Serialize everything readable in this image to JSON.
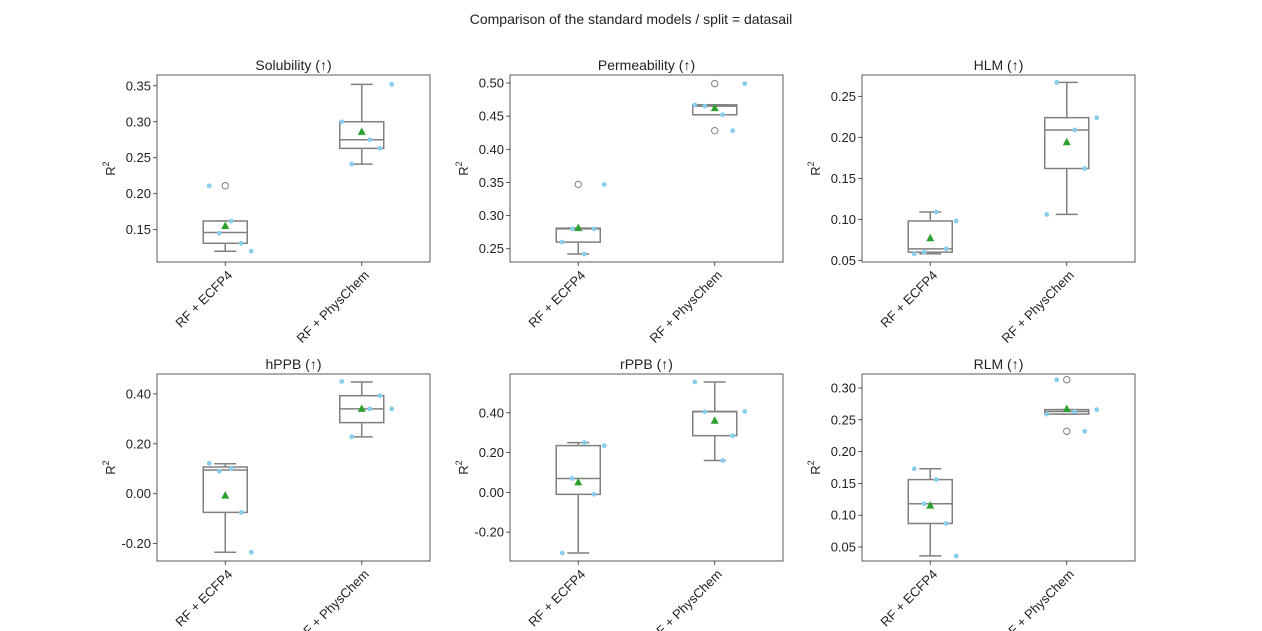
{
  "figure_title": "Comparison of the standard models / split = datasail",
  "colors": {
    "box": "#808080",
    "mean": "#2ca02c",
    "points": "#87ceeb",
    "outlier": "#808080",
    "frame": "#333333"
  },
  "chart_data": [
    {
      "type": "box",
      "title": "Solubility (↑)",
      "ylabel": "R",
      "ylabel_sup": "2",
      "ylim": [
        0.105,
        0.365
      ],
      "yticks": [
        0.15,
        0.2,
        0.25,
        0.3,
        0.35
      ],
      "ytick_labels": [
        "0.15",
        "0.20",
        "0.25",
        "0.30",
        "0.35"
      ],
      "categories": [
        "RF + ECFP4",
        "RF + PhysChem"
      ],
      "boxes": [
        {
          "whislo": 0.12,
          "q1": 0.131,
          "med": 0.146,
          "q3": 0.162,
          "whishi": 0.162,
          "mean": 0.155,
          "outliers": [
            0.211
          ],
          "points": [
            0.211,
            0.162,
            0.145,
            0.131,
            0.12
          ]
        },
        {
          "whislo": 0.241,
          "q1": 0.263,
          "med": 0.275,
          "q3": 0.3,
          "whishi": 0.352,
          "mean": 0.286,
          "outliers": [],
          "points": [
            0.3,
            0.241,
            0.275,
            0.263,
            0.352
          ]
        }
      ]
    },
    {
      "type": "box",
      "title": "Permeability (↑)",
      "ylabel": "R",
      "ylabel_sup": "2",
      "ylim": [
        0.23,
        0.512
      ],
      "yticks": [
        0.25,
        0.3,
        0.35,
        0.4,
        0.45,
        0.5
      ],
      "ytick_labels": [
        "0.25",
        "0.30",
        "0.35",
        "0.40",
        "0.45",
        "0.50"
      ],
      "categories": [
        "RF + ECFP4",
        "RF + PhysChem"
      ],
      "boxes": [
        {
          "whislo": 0.242,
          "q1": 0.26,
          "med": 0.28,
          "q3": 0.281,
          "whishi": 0.281,
          "mean": 0.281,
          "outliers": [
            0.347
          ],
          "points": [
            0.26,
            0.242,
            0.28,
            0.28,
            0.347
          ]
        },
        {
          "whislo": 0.452,
          "q1": 0.452,
          "med": 0.465,
          "q3": 0.467,
          "whishi": 0.467,
          "mean": 0.462,
          "outliers": [
            0.499,
            0.428
          ],
          "points": [
            0.467,
            0.465,
            0.452,
            0.428,
            0.499
          ]
        }
      ]
    },
    {
      "type": "box",
      "title": "HLM (↑)",
      "ylabel": "R",
      "ylabel_sup": "2",
      "ylim": [
        0.048,
        0.276
      ],
      "yticks": [
        0.05,
        0.1,
        0.15,
        0.2,
        0.25
      ],
      "ytick_labels": [
        "0.05",
        "0.10",
        "0.15",
        "0.20",
        "0.25"
      ],
      "categories": [
        "RF + ECFP4",
        "RF + PhysChem"
      ],
      "boxes": [
        {
          "whislo": 0.058,
          "q1": 0.06,
          "med": 0.064,
          "q3": 0.098,
          "whishi": 0.109,
          "mean": 0.077,
          "outliers": [],
          "points": [
            0.058,
            0.109,
            0.06,
            0.064,
            0.098
          ]
        },
        {
          "whislo": 0.106,
          "q1": 0.162,
          "med": 0.209,
          "q3": 0.224,
          "whishi": 0.267,
          "mean": 0.194,
          "outliers": [],
          "points": [
            0.106,
            0.267,
            0.209,
            0.162,
            0.224
          ]
        }
      ]
    },
    {
      "type": "box",
      "title": "hPPB (↑)",
      "ylabel": "R",
      "ylabel_sup": "2",
      "ylim": [
        -0.27,
        0.48
      ],
      "yticks": [
        -0.2,
        0.0,
        0.2,
        0.4
      ],
      "ytick_labels": [
        "-0.20",
        "0.00",
        "0.20",
        "0.40"
      ],
      "categories": [
        "RF + ECFP4",
        "RF + PhysChem"
      ],
      "boxes": [
        {
          "whislo": -0.235,
          "q1": -0.075,
          "med": 0.095,
          "q3": 0.107,
          "whishi": 0.12,
          "mean": -0.008,
          "outliers": [],
          "points": [
            0.122,
            0.1,
            0.09,
            -0.075,
            -0.235
          ]
        },
        {
          "whislo": 0.228,
          "q1": 0.285,
          "med": 0.34,
          "q3": 0.393,
          "whishi": 0.448,
          "mean": 0.34,
          "outliers": [],
          "points": [
            0.45,
            0.228,
            0.34,
            0.393,
            0.34
          ]
        }
      ]
    },
    {
      "type": "box",
      "title": "rPPB (↑)",
      "ylabel": "R",
      "ylabel_sup": "2",
      "ylim": [
        -0.345,
        0.595
      ],
      "yticks": [
        -0.2,
        0.0,
        0.2,
        0.4
      ],
      "ytick_labels": [
        "-0.20",
        "0.00",
        "0.20",
        "0.40"
      ],
      "categories": [
        "RF + ECFP4",
        "RF + PhysChem"
      ],
      "boxes": [
        {
          "whislo": -0.305,
          "q1": -0.01,
          "med": 0.07,
          "q3": 0.235,
          "whishi": 0.25,
          "mean": 0.05,
          "outliers": [],
          "points": [
            -0.305,
            0.25,
            0.07,
            -0.01,
            0.235
          ]
        },
        {
          "whislo": 0.16,
          "q1": 0.285,
          "med": 0.405,
          "q3": 0.407,
          "whishi": 0.555,
          "mean": 0.36,
          "outliers": [],
          "points": [
            0.555,
            0.405,
            0.16,
            0.285,
            0.407
          ]
        }
      ]
    },
    {
      "type": "box",
      "title": "RLM (↑)",
      "ylabel": "R",
      "ylabel_sup": "2",
      "ylim": [
        0.028,
        0.322
      ],
      "yticks": [
        0.05,
        0.1,
        0.15,
        0.2,
        0.25,
        0.3
      ],
      "ytick_labels": [
        "0.05",
        "0.10",
        "0.15",
        "0.20",
        "0.25",
        "0.30"
      ],
      "categories": [
        "RF + ECFP4",
        "RF + PhysChem"
      ],
      "boxes": [
        {
          "whislo": 0.036,
          "q1": 0.087,
          "med": 0.118,
          "q3": 0.156,
          "whishi": 0.173,
          "mean": 0.115,
          "outliers": [],
          "points": [
            0.173,
            0.156,
            0.118,
            0.087,
            0.036
          ]
        },
        {
          "whislo": 0.259,
          "q1": 0.259,
          "med": 0.263,
          "q3": 0.266,
          "whishi": 0.266,
          "mean": 0.267,
          "outliers": [
            0.313,
            0.232
          ],
          "points": [
            0.259,
            0.313,
            0.263,
            0.232,
            0.266
          ]
        }
      ]
    }
  ]
}
